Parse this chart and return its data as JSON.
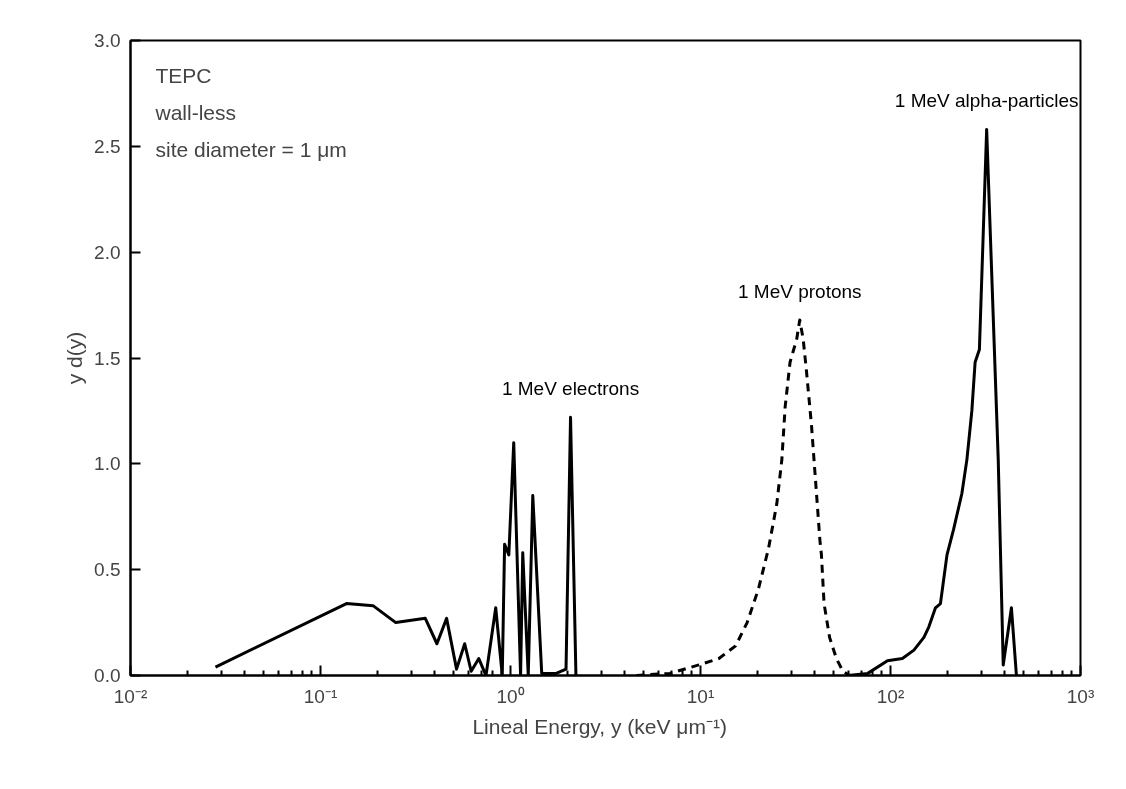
{
  "chart_data": {
    "type": "line",
    "xlabel": "Lineal Energy,  y  (keV μm⁻¹)",
    "ylabel": "y d(y)",
    "log": "x",
    "grid": false,
    "legend": false,
    "xlim": [
      0.01,
      1000
    ],
    "xticks": [
      {
        "value": 0.01,
        "label": "10⁻²"
      },
      {
        "value": 0.1,
        "label": "10⁻¹"
      },
      {
        "value": 1,
        "label": "10⁰"
      },
      {
        "value": 10,
        "label": "10¹"
      },
      {
        "value": 100,
        "label": "10²"
      },
      {
        "value": 1000,
        "label": "10³"
      }
    ],
    "ylim": [
      0,
      3
    ],
    "yticks": [
      {
        "value": 0,
        "label": "0.0"
      },
      {
        "value": 0.5,
        "label": "0.5"
      },
      {
        "value": 1,
        "label": "1.0"
      },
      {
        "value": 1.5,
        "label": "1.5"
      },
      {
        "value": 2,
        "label": "2.0"
      },
      {
        "value": 2.5,
        "label": "2.5"
      },
      {
        "value": 3,
        "label": "3.0"
      }
    ],
    "annotations": [
      "TEPC",
      "wall-less",
      "site diameter = 1 μm"
    ],
    "series": [
      {
        "name": "1 MeV electrons",
        "color": "#000000",
        "line_style": "solid",
        "x": [
          0.028,
          0.137,
          0.189,
          0.249,
          0.356,
          0.41,
          0.461,
          0.52,
          0.574,
          0.621,
          0.681,
          0.743,
          0.836,
          0.905,
          0.931,
          0.98,
          1.04,
          1.13,
          1.16,
          1.24,
          1.31,
          1.46,
          1.74,
          1.96,
          2.07,
          2.21
        ],
        "values": [
          0.04,
          0.34,
          0.33,
          0.25,
          0.27,
          0.15,
          0.27,
          0.03,
          0.15,
          0.02,
          0.08,
          0.0,
          0.32,
          0.0,
          0.62,
          0.57,
          1.1,
          0.0,
          0.58,
          0.0,
          0.85,
          0.01,
          0.01,
          0.03,
          1.22,
          0.0
        ]
      },
      {
        "name": "1 MeV protons",
        "color": "#000000",
        "line_style": "dashed",
        "x": [
          4.6,
          6.9,
          9.8,
          12.5,
          15.3,
          17.6,
          20.2,
          22.8,
          25.2,
          26.8,
          27.9,
          29.6,
          32.1,
          33.3,
          34.7,
          36.1,
          38.4,
          40.7,
          42.5,
          43.3,
          44.7,
          47.8,
          51.9,
          56.2,
          60.8
        ],
        "values": [
          0.0,
          0.01,
          0.05,
          0.08,
          0.14,
          0.25,
          0.41,
          0.6,
          0.81,
          1.02,
          1.27,
          1.48,
          1.59,
          1.68,
          1.59,
          1.44,
          1.18,
          0.87,
          0.64,
          0.57,
          0.34,
          0.18,
          0.08,
          0.02,
          0.0
        ]
      },
      {
        "name": "1 MeV alpha-particles",
        "color": "#000000",
        "line_style": "solid",
        "x": [
          59.7,
          75.9,
          96.4,
          115.5,
          132.8,
          149.9,
          159.2,
          172.5,
          183.2,
          198.3,
          214.8,
          237.5,
          252.4,
          268,
          278.8,
          293.7,
          320.7,
          369,
          392,
          433,
          460
        ],
        "values": [
          0.0,
          0.01,
          0.07,
          0.08,
          0.12,
          0.18,
          0.23,
          0.32,
          0.34,
          0.57,
          0.69,
          0.86,
          1.02,
          1.25,
          1.48,
          1.54,
          2.58,
          1.02,
          0.05,
          0.32,
          0.0
        ]
      }
    ]
  }
}
